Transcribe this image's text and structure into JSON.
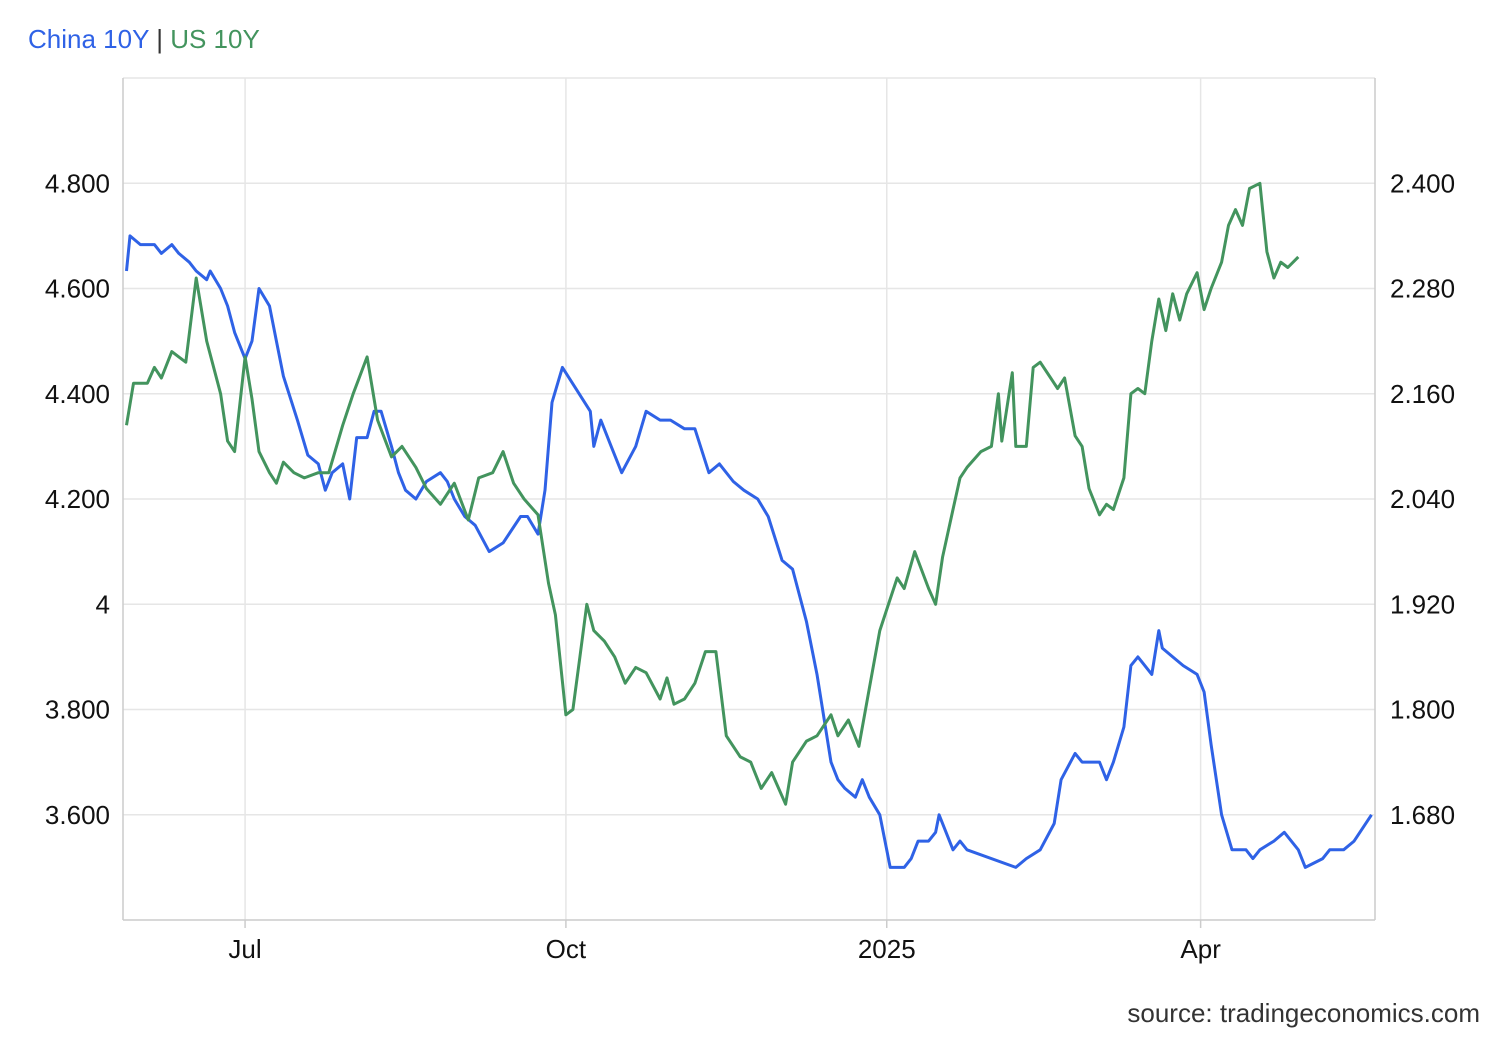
{
  "chart_data": {
    "type": "line",
    "title": "",
    "legend": {
      "items": [
        "China 10Y",
        "US 10Y"
      ],
      "separator": "|",
      "placement": "top-left"
    },
    "colors": {
      "China 10Y": "#2f62e6",
      "US 10Y": "#43945e",
      "grid": "#e6e6e6",
      "axis": "#cccccc"
    },
    "grid": true,
    "x_axis": {
      "type": "date",
      "range": [
        "2024-05-27",
        "2025-05-21"
      ],
      "ticks": [
        {
          "date": "2024-07-01",
          "label": "Jul"
        },
        {
          "date": "2024-10-01",
          "label": "Oct"
        },
        {
          "date": "2025-01-01",
          "label": "2025"
        },
        {
          "date": "2025-04-01",
          "label": "Apr"
        }
      ]
    },
    "y_axis_left": {
      "series": "US 10Y",
      "range": [
        3.4,
        5.0
      ],
      "ticks": [
        3.6,
        3.8,
        4,
        4.2,
        4.4,
        4.6,
        4.8
      ],
      "tick_labels": [
        "3.600",
        "3.800",
        "4",
        "4.200",
        "4.400",
        "4.600",
        "4.800"
      ]
    },
    "y_axis_right": {
      "series": "China 10Y",
      "range": [
        1.56,
        2.52
      ],
      "ticks": [
        1.68,
        1.8,
        1.92,
        2.04,
        2.16,
        2.28,
        2.4
      ],
      "tick_labels": [
        "1.680",
        "1.800",
        "1.920",
        "2.040",
        "2.160",
        "2.280",
        "2.400"
      ]
    },
    "series": [
      {
        "name": "China 10Y",
        "axis": "right",
        "points": [
          [
            "2024-05-28",
            2.3
          ],
          [
            "2024-05-29",
            2.34
          ],
          [
            "2024-06-01",
            2.33
          ],
          [
            "2024-06-04",
            2.33
          ],
          [
            "2024-06-05",
            2.33
          ],
          [
            "2024-06-07",
            2.32
          ],
          [
            "2024-06-10",
            2.33
          ],
          [
            "2024-06-12",
            2.32
          ],
          [
            "2024-06-15",
            2.31
          ],
          [
            "2024-06-17",
            2.3
          ],
          [
            "2024-06-20",
            2.29
          ],
          [
            "2024-06-21",
            2.3
          ],
          [
            "2024-06-24",
            2.28
          ],
          [
            "2024-06-26",
            2.26
          ],
          [
            "2024-06-28",
            2.23
          ],
          [
            "2024-07-01",
            2.2
          ],
          [
            "2024-07-03",
            2.22
          ],
          [
            "2024-07-05",
            2.28
          ],
          [
            "2024-07-08",
            2.26
          ],
          [
            "2024-07-10",
            2.22
          ],
          [
            "2024-07-12",
            2.18
          ],
          [
            "2024-07-16",
            2.13
          ],
          [
            "2024-07-19",
            2.09
          ],
          [
            "2024-07-22",
            2.08
          ],
          [
            "2024-07-24",
            2.05
          ],
          [
            "2024-07-26",
            2.07
          ],
          [
            "2024-07-29",
            2.08
          ],
          [
            "2024-07-31",
            2.04
          ],
          [
            "2024-08-02",
            2.11
          ],
          [
            "2024-08-05",
            2.11
          ],
          [
            "2024-08-07",
            2.14
          ],
          [
            "2024-08-09",
            2.14
          ],
          [
            "2024-08-12",
            2.1
          ],
          [
            "2024-08-14",
            2.07
          ],
          [
            "2024-08-16",
            2.05
          ],
          [
            "2024-08-19",
            2.04
          ],
          [
            "2024-08-22",
            2.06
          ],
          [
            "2024-08-26",
            2.07
          ],
          [
            "2024-08-28",
            2.06
          ],
          [
            "2024-08-30",
            2.04
          ],
          [
            "2024-09-02",
            2.02
          ],
          [
            "2024-09-05",
            2.01
          ],
          [
            "2024-09-09",
            1.98
          ],
          [
            "2024-09-13",
            1.99
          ],
          [
            "2024-09-18",
            2.02
          ],
          [
            "2024-09-20",
            2.02
          ],
          [
            "2024-09-23",
            2.0
          ],
          [
            "2024-09-25",
            2.05
          ],
          [
            "2024-09-27",
            2.15
          ],
          [
            "2024-09-30",
            2.19
          ],
          [
            "2024-10-08",
            2.14
          ],
          [
            "2024-10-09",
            2.1
          ],
          [
            "2024-10-11",
            2.13
          ],
          [
            "2024-10-14",
            2.1
          ],
          [
            "2024-10-17",
            2.07
          ],
          [
            "2024-10-21",
            2.1
          ],
          [
            "2024-10-24",
            2.14
          ],
          [
            "2024-10-28",
            2.13
          ],
          [
            "2024-10-31",
            2.13
          ],
          [
            "2024-11-04",
            2.12
          ],
          [
            "2024-11-07",
            2.12
          ],
          [
            "2024-11-11",
            2.07
          ],
          [
            "2024-11-14",
            2.08
          ],
          [
            "2024-11-18",
            2.06
          ],
          [
            "2024-11-21",
            2.05
          ],
          [
            "2024-11-25",
            2.04
          ],
          [
            "2024-11-28",
            2.02
          ],
          [
            "2024-12-02",
            1.97
          ],
          [
            "2024-12-05",
            1.96
          ],
          [
            "2024-12-09",
            1.9
          ],
          [
            "2024-12-12",
            1.84
          ],
          [
            "2024-12-16",
            1.74
          ],
          [
            "2024-12-18",
            1.72
          ],
          [
            "2024-12-20",
            1.71
          ],
          [
            "2024-12-23",
            1.7
          ],
          [
            "2024-12-25",
            1.72
          ],
          [
            "2024-12-27",
            1.7
          ],
          [
            "2024-12-30",
            1.68
          ],
          [
            "2025-01-02",
            1.62
          ],
          [
            "2025-01-06",
            1.62
          ],
          [
            "2025-01-08",
            1.63
          ],
          [
            "2025-01-10",
            1.65
          ],
          [
            "2025-01-13",
            1.65
          ],
          [
            "2025-01-15",
            1.66
          ],
          [
            "2025-01-16",
            1.68
          ],
          [
            "2025-01-20",
            1.64
          ],
          [
            "2025-01-22",
            1.65
          ],
          [
            "2025-01-24",
            1.64
          ],
          [
            "2025-02-07",
            1.62
          ],
          [
            "2025-02-10",
            1.63
          ],
          [
            "2025-02-14",
            1.64
          ],
          [
            "2025-02-18",
            1.67
          ],
          [
            "2025-02-20",
            1.72
          ],
          [
            "2025-02-24",
            1.75
          ],
          [
            "2025-02-26",
            1.74
          ],
          [
            "2025-03-03",
            1.74
          ],
          [
            "2025-03-05",
            1.72
          ],
          [
            "2025-03-07",
            1.74
          ],
          [
            "2025-03-10",
            1.78
          ],
          [
            "2025-03-12",
            1.85
          ],
          [
            "2025-03-14",
            1.86
          ],
          [
            "2025-03-18",
            1.84
          ],
          [
            "2025-03-20",
            1.89
          ],
          [
            "2025-03-21",
            1.87
          ],
          [
            "2025-03-24",
            1.86
          ],
          [
            "2025-03-27",
            1.85
          ],
          [
            "2025-03-31",
            1.84
          ],
          [
            "2025-04-02",
            1.82
          ],
          [
            "2025-04-04",
            1.76
          ],
          [
            "2025-04-07",
            1.68
          ],
          [
            "2025-04-10",
            1.64
          ],
          [
            "2025-04-14",
            1.64
          ],
          [
            "2025-04-16",
            1.63
          ],
          [
            "2025-04-18",
            1.64
          ],
          [
            "2025-04-22",
            1.65
          ],
          [
            "2025-04-25",
            1.66
          ],
          [
            "2025-04-29",
            1.64
          ],
          [
            "2025-05-01",
            1.62
          ],
          [
            "2025-05-06",
            1.63
          ],
          [
            "2025-05-08",
            1.64
          ],
          [
            "2025-05-12",
            1.64
          ],
          [
            "2025-05-15",
            1.65
          ],
          [
            "2025-05-20",
            1.68
          ]
        ]
      },
      {
        "name": "US 10Y",
        "axis": "left",
        "points": [
          [
            "2024-05-28",
            4.34
          ],
          [
            "2024-05-30",
            4.42
          ],
          [
            "2024-06-03",
            4.42
          ],
          [
            "2024-06-05",
            4.45
          ],
          [
            "2024-06-07",
            4.43
          ],
          [
            "2024-06-10",
            4.48
          ],
          [
            "2024-06-12",
            4.47
          ],
          [
            "2024-06-14",
            4.46
          ],
          [
            "2024-06-17",
            4.62
          ],
          [
            "2024-06-20",
            4.5
          ],
          [
            "2024-06-24",
            4.4
          ],
          [
            "2024-06-26",
            4.31
          ],
          [
            "2024-06-28",
            4.29
          ],
          [
            "2024-07-01",
            4.47
          ],
          [
            "2024-07-03",
            4.39
          ],
          [
            "2024-07-05",
            4.29
          ],
          [
            "2024-07-08",
            4.25
          ],
          [
            "2024-07-10",
            4.23
          ],
          [
            "2024-07-12",
            4.27
          ],
          [
            "2024-07-15",
            4.25
          ],
          [
            "2024-07-18",
            4.24
          ],
          [
            "2024-07-22",
            4.25
          ],
          [
            "2024-07-25",
            4.25
          ],
          [
            "2024-07-29",
            4.34
          ],
          [
            "2024-08-01",
            4.4
          ],
          [
            "2024-08-05",
            4.47
          ],
          [
            "2024-08-08",
            4.35
          ],
          [
            "2024-08-12",
            4.28
          ],
          [
            "2024-08-15",
            4.3
          ],
          [
            "2024-08-19",
            4.26
          ],
          [
            "2024-08-22",
            4.22
          ],
          [
            "2024-08-26",
            4.19
          ],
          [
            "2024-08-30",
            4.23
          ],
          [
            "2024-09-03",
            4.16
          ],
          [
            "2024-09-06",
            4.24
          ],
          [
            "2024-09-10",
            4.25
          ],
          [
            "2024-09-13",
            4.29
          ],
          [
            "2024-09-16",
            4.23
          ],
          [
            "2024-09-19",
            4.2
          ],
          [
            "2024-09-23",
            4.17
          ],
          [
            "2024-09-26",
            4.04
          ],
          [
            "2024-09-28",
            3.98
          ],
          [
            "2024-10-01",
            3.79
          ],
          [
            "2024-10-03",
            3.8
          ],
          [
            "2024-10-05",
            3.9
          ],
          [
            "2024-10-07",
            4.0
          ],
          [
            "2024-10-09",
            3.95
          ],
          [
            "2024-10-12",
            3.93
          ],
          [
            "2024-10-15",
            3.9
          ],
          [
            "2024-10-18",
            3.85
          ],
          [
            "2024-10-21",
            3.88
          ],
          [
            "2024-10-24",
            3.87
          ],
          [
            "2024-10-28",
            3.82
          ],
          [
            "2024-10-30",
            3.86
          ],
          [
            "2024-11-01",
            3.81
          ],
          [
            "2024-11-04",
            3.82
          ],
          [
            "2024-11-07",
            3.85
          ],
          [
            "2024-11-10",
            3.91
          ],
          [
            "2024-11-13",
            3.91
          ],
          [
            "2024-11-16",
            3.75
          ],
          [
            "2024-11-20",
            3.71
          ],
          [
            "2024-11-23",
            3.7
          ],
          [
            "2024-11-26",
            3.65
          ],
          [
            "2024-11-29",
            3.68
          ],
          [
            "2024-12-03",
            3.62
          ],
          [
            "2024-12-05",
            3.7
          ],
          [
            "2024-12-09",
            3.74
          ],
          [
            "2024-12-12",
            3.75
          ],
          [
            "2024-12-14",
            3.77
          ],
          [
            "2024-12-16",
            3.79
          ],
          [
            "2024-12-18",
            3.75
          ],
          [
            "2024-12-21",
            3.78
          ],
          [
            "2024-12-24",
            3.73
          ],
          [
            "2024-12-27",
            3.84
          ],
          [
            "2024-12-30",
            3.95
          ],
          [
            "2025-01-02",
            4.01
          ],
          [
            "2025-01-04",
            4.05
          ],
          [
            "2025-01-06",
            4.03
          ],
          [
            "2025-01-09",
            4.1
          ],
          [
            "2025-01-13",
            4.03
          ],
          [
            "2025-01-15",
            4.0
          ],
          [
            "2025-01-17",
            4.09
          ],
          [
            "2025-01-20",
            4.18
          ],
          [
            "2025-01-22",
            4.24
          ],
          [
            "2025-01-24",
            4.26
          ],
          [
            "2025-01-28",
            4.29
          ],
          [
            "2025-01-31",
            4.3
          ],
          [
            "2025-02-02",
            4.4
          ],
          [
            "2025-02-03",
            4.31
          ],
          [
            "2025-02-06",
            4.44
          ],
          [
            "2025-02-07",
            4.3
          ],
          [
            "2025-02-10",
            4.3
          ],
          [
            "2025-02-12",
            4.45
          ],
          [
            "2025-02-14",
            4.46
          ],
          [
            "2025-02-17",
            4.43
          ],
          [
            "2025-02-19",
            4.41
          ],
          [
            "2025-02-21",
            4.43
          ],
          [
            "2025-02-24",
            4.32
          ],
          [
            "2025-02-26",
            4.3
          ],
          [
            "2025-02-28",
            4.22
          ],
          [
            "2025-03-03",
            4.17
          ],
          [
            "2025-03-05",
            4.19
          ],
          [
            "2025-03-07",
            4.18
          ],
          [
            "2025-03-10",
            4.24
          ],
          [
            "2025-03-12",
            4.4
          ],
          [
            "2025-03-14",
            4.41
          ],
          [
            "2025-03-16",
            4.4
          ],
          [
            "2025-03-18",
            4.5
          ],
          [
            "2025-03-20",
            4.58
          ],
          [
            "2025-03-22",
            4.52
          ],
          [
            "2025-03-24",
            4.59
          ],
          [
            "2025-03-26",
            4.54
          ],
          [
            "2025-03-28",
            4.59
          ],
          [
            "2025-03-31",
            4.63
          ],
          [
            "2025-04-02",
            4.56
          ],
          [
            "2025-04-04",
            4.6
          ],
          [
            "2025-04-07",
            4.65
          ],
          [
            "2025-04-09",
            4.72
          ],
          [
            "2025-04-11",
            4.75
          ],
          [
            "2025-04-13",
            4.72
          ],
          [
            "2025-04-15",
            4.79
          ],
          [
            "2025-04-18",
            4.8
          ],
          [
            "2025-04-20",
            4.67
          ],
          [
            "2025-04-22",
            4.62
          ],
          [
            "2025-04-24",
            4.65
          ],
          [
            "2025-04-26",
            4.64
          ],
          [
            "2025-04-29",
            4.66
          ]
        ]
      }
    ]
  },
  "source": "source: tradingeconomics.com"
}
